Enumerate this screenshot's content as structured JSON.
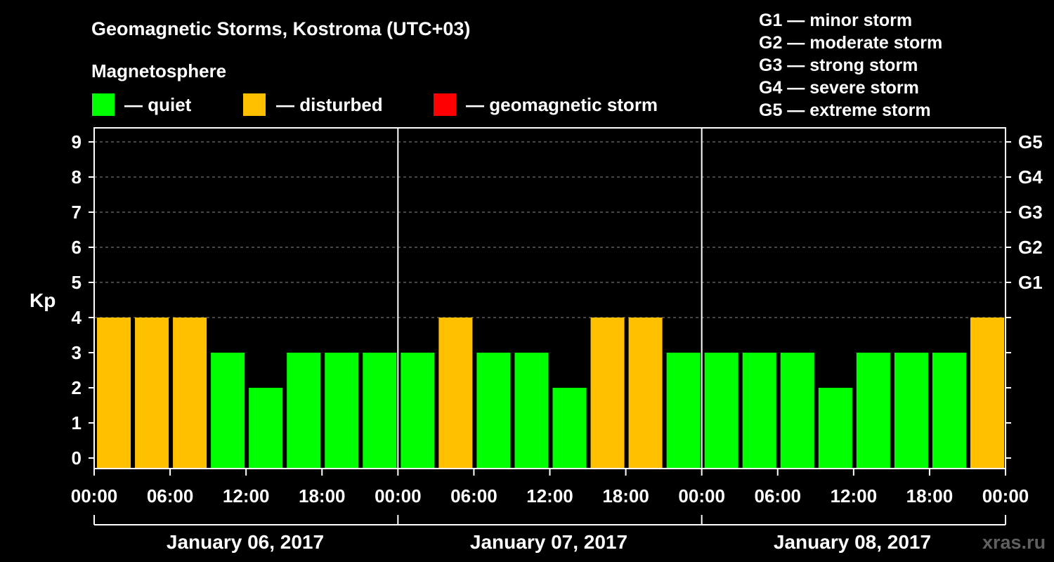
{
  "title": "Geomagnetic Storms, Kostroma (UTC+03)",
  "legend": {
    "heading": "Magnetosphere",
    "items": [
      {
        "label": "— quiet",
        "color": "#00ff00"
      },
      {
        "label": "— disturbed",
        "color": "#ffc000"
      },
      {
        "label": "— geomagnetic storm",
        "color": "#ff0000"
      }
    ]
  },
  "storm_scale": [
    "G1 — minor storm",
    "G2 — moderate storm",
    "G3 — strong storm",
    "G4 — severe storm",
    "G5 — extreme storm"
  ],
  "watermark": "xras.ru",
  "chart_data": {
    "type": "bar",
    "title": "Geomagnetic Storms, Kostroma (UTC+03)",
    "ylabel": "Kp",
    "ylim": [
      0,
      9
    ],
    "yticks": [
      "0",
      "1",
      "2",
      "3",
      "4",
      "5",
      "6",
      "7",
      "8",
      "9"
    ],
    "right_ticks": [
      {
        "value": 5,
        "label": "G1"
      },
      {
        "value": 6,
        "label": "G2"
      },
      {
        "value": 7,
        "label": "G3"
      },
      {
        "value": 8,
        "label": "G4"
      },
      {
        "value": 9,
        "label": "G5"
      }
    ],
    "grid": true,
    "interval_hours": 3,
    "days": [
      "January 06, 2017",
      "January 07, 2017",
      "January 08, 2017"
    ],
    "xtick_labels": [
      "00:00",
      "06:00",
      "12:00",
      "18:00",
      "00:00",
      "06:00",
      "12:00",
      "18:00",
      "00:00",
      "06:00",
      "12:00",
      "18:00",
      "00:00"
    ],
    "values": [
      4,
      4,
      4,
      3,
      2,
      3,
      3,
      3,
      3,
      4,
      3,
      3,
      2,
      4,
      4,
      3,
      3,
      3,
      3,
      2,
      3,
      3,
      3,
      4
    ],
    "status": [
      "disturbed",
      "disturbed",
      "disturbed",
      "quiet",
      "quiet",
      "quiet",
      "quiet",
      "quiet",
      "quiet",
      "disturbed",
      "quiet",
      "quiet",
      "quiet",
      "disturbed",
      "disturbed",
      "quiet",
      "quiet",
      "quiet",
      "quiet",
      "quiet",
      "quiet",
      "quiet",
      "quiet",
      "disturbed"
    ],
    "colors": {
      "quiet": "#00ff00",
      "disturbed": "#ffc000",
      "storm": "#ff0000"
    }
  }
}
